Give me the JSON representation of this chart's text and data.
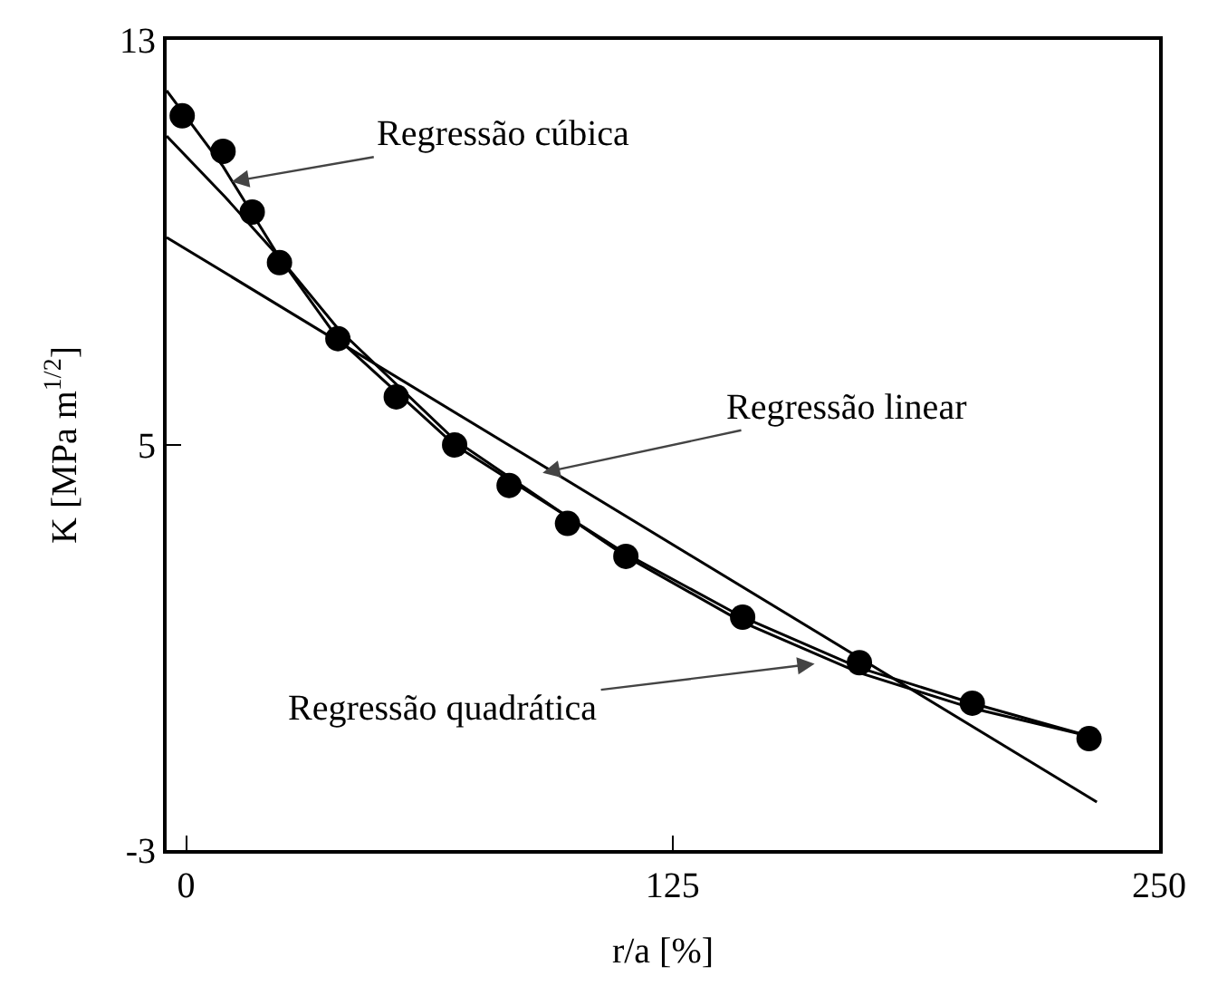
{
  "chart_data": {
    "type": "scatter",
    "xlabel": "r/a [%]",
    "ylabel": "K [MPa m$^{1/2}$]",
    "xlim": [
      -5,
      250
    ],
    "ylim": [
      -3,
      13
    ],
    "xticks": [
      0,
      125,
      250
    ],
    "yticks": [
      -3,
      5,
      13
    ],
    "grid": false,
    "legend": false,
    "marker": "circle",
    "series": [
      {
        "color": "#000000",
        "x": [
          -1,
          9.5,
          17,
          24,
          39,
          54,
          69,
          83,
          98,
          113,
          143,
          173,
          202,
          232
        ],
        "values": [
          11.5,
          10.8,
          9.6,
          8.6,
          7.1,
          5.95,
          5.0,
          4.2,
          3.45,
          2.8,
          1.6,
          0.7,
          -0.1,
          -0.8
        ]
      },
      {
        "type": "line",
        "color": "#000000",
        "marker": "none",
        "x": [
          -5,
          234
        ],
        "values": [
          9.1,
          -2.05
        ]
      },
      {
        "type": "line",
        "color": "#000000",
        "marker": "none",
        "x": [
          -5,
          9.5,
          24,
          39,
          69,
          113,
          143,
          173,
          202,
          232
        ],
        "values": [
          12.0,
          10.5,
          8.7,
          7.1,
          5.0,
          2.85,
          1.6,
          0.6,
          -0.1,
          -0.75
        ]
      },
      {
        "type": "line",
        "color": "#000000",
        "marker": "none",
        "x": [
          -5,
          10,
          24,
          39,
          69,
          113,
          143,
          173,
          202,
          232
        ],
        "values": [
          11.1,
          9.9,
          8.7,
          7.3,
          5.1,
          2.8,
          1.5,
          0.5,
          -0.2,
          -0.75
        ]
      }
    ],
    "annotations": [
      {
        "text": "Regressão cúbica",
        "x": 11.7,
        "y": 10.2
      },
      {
        "text": "Regressão linear",
        "x": 91.6,
        "y": 4.45
      },
      {
        "text": "Regressão quadrática",
        "x": 161.5,
        "y": 0.68
      }
    ]
  }
}
